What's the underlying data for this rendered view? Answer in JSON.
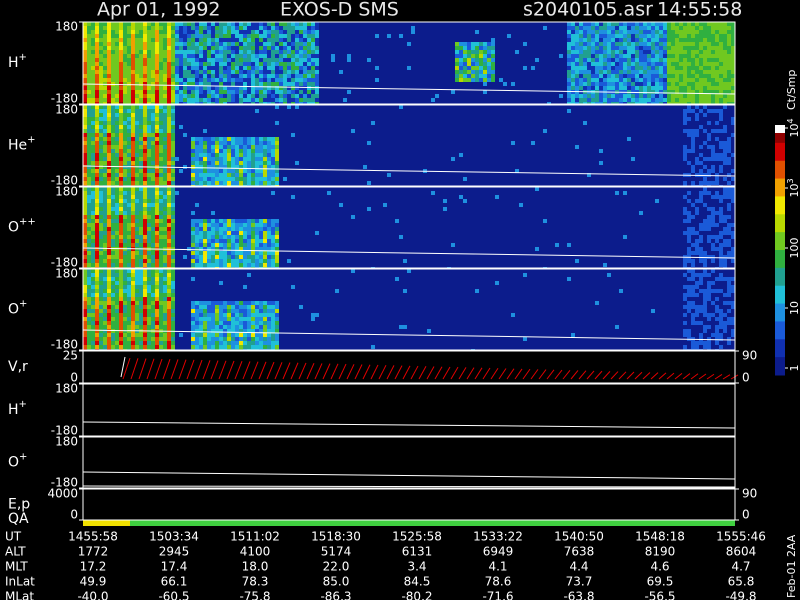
{
  "header": {
    "date": "Apr 01, 1992",
    "instrument": "EXOS-D SMS",
    "file": "s2040105.asr",
    "time": "14:55:58"
  },
  "panels": [
    {
      "label": {
        "text": "H",
        "sup": "+"
      },
      "ylim": [
        -180,
        180
      ],
      "yticks": [
        180,
        -180
      ]
    },
    {
      "label": {
        "text": "He",
        "sup": "+"
      },
      "ylim": [
        -180,
        180
      ],
      "yticks": [
        180,
        -180
      ]
    },
    {
      "label": {
        "text": "O",
        "sup": "++"
      },
      "ylim": [
        -180,
        180
      ],
      "yticks": [
        180,
        -180
      ]
    },
    {
      "label": {
        "text": "O",
        "sup": "+"
      },
      "ylim": [
        -180,
        180
      ],
      "yticks": [
        180,
        -180
      ]
    },
    {
      "label": {
        "text": "V,r"
      },
      "ylim": [
        0,
        25
      ],
      "yticks": [
        25,
        0
      ],
      "y2lim": [
        0,
        90
      ],
      "y2ticks": [
        90,
        0
      ]
    },
    {
      "label": {
        "text": "H",
        "sup": "+"
      },
      "ylim": [
        -180,
        180
      ],
      "yticks": [
        180,
        -180
      ]
    },
    {
      "label": {
        "text": "O",
        "sup": "+"
      },
      "ylim": [
        -180,
        180
      ],
      "yticks": [
        180,
        -180
      ]
    },
    {
      "label": {
        "text": "E,p"
      },
      "ylim": [
        0,
        4000
      ],
      "yticks": [
        4000,
        0
      ],
      "y2lim": [
        0,
        90
      ],
      "y2ticks": [
        90,
        0
      ]
    },
    {
      "label": {
        "text": "QA"
      }
    }
  ],
  "colorbar": {
    "unit": "Ct/Smp",
    "ticks": [
      {
        "value": 1,
        "label": "1"
      },
      {
        "value": 10,
        "label": "10"
      },
      {
        "value": 100,
        "label": "100"
      },
      {
        "value": 1000,
        "base": "10",
        "exp": "3"
      },
      {
        "value": 10000,
        "base": "10",
        "exp": "4"
      }
    ]
  },
  "table": {
    "rows": [
      {
        "label": "UT",
        "values": [
          "1455:58",
          "1503:34",
          "1511:02",
          "1518:30",
          "1525:58",
          "1533:22",
          "1540:50",
          "1548:18",
          "1555:46"
        ]
      },
      {
        "label": "ALT",
        "values": [
          "1772",
          "2945",
          "4100",
          "5174",
          "6131",
          "6949",
          "7638",
          "8190",
          "8604"
        ]
      },
      {
        "label": "MLT",
        "values": [
          "17.2",
          "17.4",
          "18.0",
          "22.0",
          "3.4",
          "4.1",
          "4.4",
          "4.6",
          "4.7"
        ]
      },
      {
        "label": "InLat",
        "values": [
          "49.9",
          "66.1",
          "78.3",
          "85.0",
          "84.5",
          "78.6",
          "73.7",
          "69.5",
          "65.8"
        ]
      },
      {
        "label": "MLat",
        "values": [
          "-40.0",
          "-60.5",
          "-75.8",
          "-86.3",
          "-80.2",
          "-71.6",
          "-63.8",
          "-56.5",
          "-49.8"
        ]
      }
    ]
  },
  "footer": "Feb-01 2AA"
}
